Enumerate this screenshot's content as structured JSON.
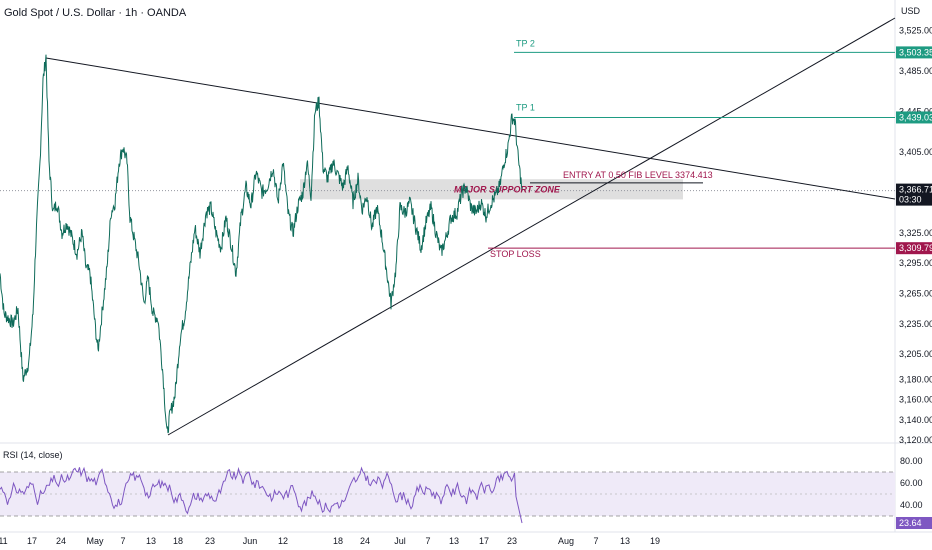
{
  "chart_title": "Gold Spot / U.S. Dollar · 1h · OANDA",
  "currency": "USD",
  "colors": {
    "price_line": "#0f6b5a",
    "rsi_line": "#7e57c2",
    "rsi_band": "#efeaf8",
    "tp": "#1e9b82",
    "stop": "#a0174d",
    "entry_text": "#a0174d",
    "trendline": "#131722",
    "zone": "#d9d9d9"
  },
  "chart_data": {
    "type": "line",
    "price_axis": {
      "ticks": [
        "3,525.000",
        "3,485.000",
        "3,445.000",
        "3,405.000",
        "3,325.000",
        "3,295.000",
        "3,265.000",
        "3,235.000",
        "3,205.000",
        "3,180.000",
        "3,160.000",
        "3,140.000",
        "3,120.000"
      ],
      "range": [
        3108,
        3552
      ]
    },
    "time_axis": {
      "labels": [
        "11",
        "17",
        "24",
        "May",
        "7",
        "13",
        "18",
        "23",
        "Jun",
        "12",
        "18",
        "24",
        "Jul",
        "7",
        "13",
        "17",
        "23",
        "Aug",
        "7",
        "13",
        "19"
      ]
    },
    "price_series": {
      "name": "XAUUSD",
      "anchors": [
        [
          0,
          3285
        ],
        [
          4,
          3245
        ],
        [
          9,
          3240
        ],
        [
          13,
          3235
        ],
        [
          18,
          3250
        ],
        [
          23,
          3180
        ],
        [
          29,
          3198
        ],
        [
          33,
          3245
        ],
        [
          36,
          3320
        ],
        [
          40,
          3395
        ],
        [
          43,
          3475
        ],
        [
          46,
          3500
        ],
        [
          49,
          3395
        ],
        [
          53,
          3345
        ],
        [
          57,
          3355
        ],
        [
          62,
          3325
        ],
        [
          67,
          3335
        ],
        [
          72,
          3320
        ],
        [
          77,
          3305
        ],
        [
          82,
          3325
        ],
        [
          86,
          3290
        ],
        [
          90,
          3285
        ],
        [
          95,
          3235
        ],
        [
          98,
          3208
        ],
        [
          103,
          3255
        ],
        [
          107,
          3290
        ],
        [
          111,
          3345
        ],
        [
          115,
          3355
        ],
        [
          119,
          3395
        ],
        [
          123,
          3410
        ],
        [
          127,
          3395
        ],
        [
          130,
          3340
        ],
        [
          134,
          3320
        ],
        [
          139,
          3295
        ],
        [
          144,
          3255
        ],
        [
          148,
          3280
        ],
        [
          153,
          3245
        ],
        [
          158,
          3240
        ],
        [
          163,
          3185
        ],
        [
          167,
          3125
        ],
        [
          170,
          3145
        ],
        [
          175,
          3165
        ],
        [
          180,
          3220
        ],
        [
          185,
          3245
        ],
        [
          190,
          3290
        ],
        [
          195,
          3330
        ],
        [
          200,
          3305
        ],
        [
          206,
          3345
        ],
        [
          211,
          3350
        ],
        [
          216,
          3325
        ],
        [
          221,
          3310
        ],
        [
          226,
          3340
        ],
        [
          231,
          3315
        ],
        [
          236,
          3285
        ],
        [
          241,
          3340
        ],
        [
          246,
          3370
        ],
        [
          251,
          3352
        ],
        [
          256,
          3385
        ],
        [
          262,
          3365
        ],
        [
          267,
          3370
        ],
        [
          273,
          3390
        ],
        [
          278,
          3355
        ],
        [
          283,
          3395
        ],
        [
          288,
          3345
        ],
        [
          293,
          3325
        ],
        [
          298,
          3352
        ],
        [
          303,
          3365
        ],
        [
          307,
          3395
        ],
        [
          311,
          3362
        ],
        [
          315,
          3445
        ],
        [
          319,
          3455
        ],
        [
          323,
          3390
        ],
        [
          328,
          3378
        ],
        [
          333,
          3395
        ],
        [
          338,
          3382
        ],
        [
          343,
          3370
        ],
        [
          348,
          3390
        ],
        [
          353,
          3355
        ],
        [
          358,
          3378
        ],
        [
          362,
          3348
        ],
        [
          367,
          3362
        ],
        [
          372,
          3330
        ],
        [
          377,
          3350
        ],
        [
          382,
          3320
        ],
        [
          387,
          3285
        ],
        [
          391,
          3255
        ],
        [
          396,
          3290
        ],
        [
          400,
          3350
        ],
        [
          405,
          3345
        ],
        [
          410,
          3355
        ],
        [
          416,
          3330
        ],
        [
          421,
          3310
        ],
        [
          426,
          3335
        ],
        [
          431,
          3350
        ],
        [
          436,
          3325
        ],
        [
          441,
          3305
        ],
        [
          446,
          3320
        ],
        [
          451,
          3340
        ],
        [
          457,
          3345
        ],
        [
          462,
          3365
        ],
        [
          466,
          3370
        ],
        [
          471,
          3350
        ],
        [
          476,
          3345
        ],
        [
          481,
          3355
        ],
        [
          486,
          3342
        ],
        [
          491,
          3355
        ],
        [
          496,
          3362
        ],
        [
          500,
          3372
        ],
        [
          504,
          3395
        ],
        [
          508,
          3410
        ],
        [
          512,
          3440
        ],
        [
          515,
          3435
        ],
        [
          518,
          3400
        ],
        [
          522,
          3368
        ]
      ]
    },
    "rsi": {
      "title": "RSI (14, close)",
      "ticks": [
        "80.00",
        "60.00",
        "40.00"
      ],
      "range": [
        10,
        92
      ],
      "band": [
        30,
        70
      ],
      "mid": 50,
      "last_value": "23.64"
    },
    "levels": [
      {
        "name": "TP 2",
        "price": 3503.35,
        "label": "3,503.350",
        "color_key": "tp"
      },
      {
        "name": "TP 1",
        "price": 3439.035,
        "label": "3,439.035",
        "color_key": "tp"
      },
      {
        "name": "STOP LOSS",
        "price": 3309.79,
        "label": "3,309.790",
        "color_key": "stop"
      }
    ],
    "current_price": {
      "label": "3,366.710",
      "countdown": "03:30"
    },
    "annotations": {
      "entry_text": "ENTRY AT 0.50 FIB LEVEL 3374.413",
      "zone_text": "MAJOR SUPPORT ZONE",
      "entry_price": 3374.413,
      "zone_prices": [
        3358,
        3378
      ]
    }
  }
}
